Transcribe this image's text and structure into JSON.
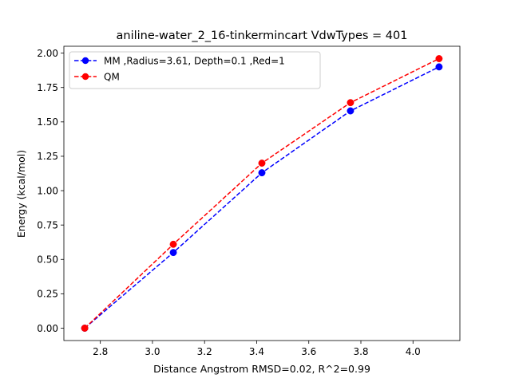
{
  "chart_data": {
    "type": "line",
    "title": "aniline-water_2_16-tinkermincart VdwTypes = 401",
    "xlabel": "Distance Angstrom RMSD=0.02, R^2=0.99",
    "ylabel": "Energy (kcal/mol)",
    "xlim": [
      2.66,
      4.18
    ],
    "ylim": [
      -0.09,
      2.05
    ],
    "x_ticks": [
      2.8,
      3.0,
      3.2,
      3.4,
      3.6,
      3.8,
      4.0
    ],
    "x_tick_labels": [
      "2.8",
      "3.0",
      "3.2",
      "3.4",
      "3.6",
      "3.8",
      "4.0"
    ],
    "y_ticks": [
      0.0,
      0.25,
      0.5,
      0.75,
      1.0,
      1.25,
      1.5,
      1.75,
      2.0
    ],
    "y_tick_labels": [
      "0.00",
      "0.25",
      "0.50",
      "0.75",
      "1.00",
      "1.25",
      "1.50",
      "1.75",
      "2.00"
    ],
    "grid": false,
    "legend_position": "top-left",
    "series": [
      {
        "name": "MM ,Radius=3.61, Depth=0.1 ,Red=1",
        "color": "#0000ff",
        "line_style": "dashed",
        "marker": "circle",
        "x": [
          2.74,
          3.08,
          3.42,
          3.76,
          4.1
        ],
        "y": [
          0.0,
          0.55,
          1.13,
          1.58,
          1.9
        ]
      },
      {
        "name": "QM",
        "color": "#ff0000",
        "line_style": "dashed",
        "marker": "circle",
        "x": [
          2.74,
          3.08,
          3.42,
          3.76,
          4.1
        ],
        "y": [
          0.0,
          0.61,
          1.2,
          1.64,
          1.96
        ]
      }
    ]
  }
}
